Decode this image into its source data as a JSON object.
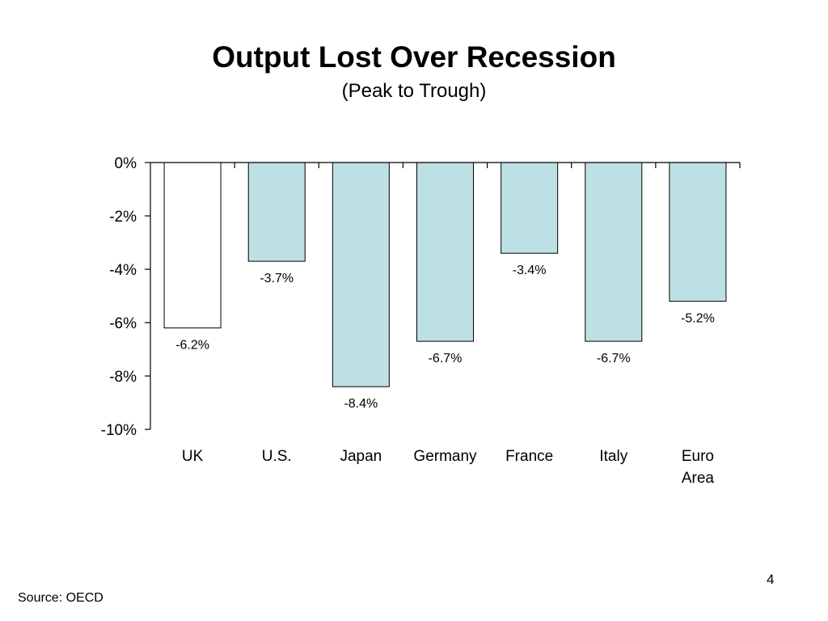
{
  "slide": {
    "title": "Output Lost Over Recession",
    "subtitle": "(Peak to Trough)",
    "source": "Source: OECD",
    "page_number": "4"
  },
  "chart_data": {
    "type": "bar",
    "categories": [
      [
        "UK"
      ],
      [
        "U.S."
      ],
      [
        "Japan"
      ],
      [
        "Germany"
      ],
      [
        "France"
      ],
      [
        "Italy"
      ],
      [
        "Euro",
        "Area"
      ]
    ],
    "values": [
      -6.2,
      -3.7,
      -8.4,
      -6.7,
      -3.4,
      -6.7,
      -5.2
    ],
    "data_labels": [
      "-6.2%",
      "-3.7%",
      "-8.4%",
      "-6.7%",
      "-3.4%",
      "-6.7%",
      "-5.2%"
    ],
    "ylim": [
      -10,
      0
    ],
    "yticks": [
      0,
      -2,
      -4,
      -6,
      -8,
      -10
    ],
    "ytick_labels": [
      "0%",
      "-2%",
      "-4%",
      "-6%",
      "-8%",
      "-10%"
    ],
    "bar_colors": [
      "#ffffff",
      "#bde0e4",
      "#bde0e4",
      "#bde0e4",
      "#bde0e4",
      "#bde0e4",
      "#bde0e4"
    ],
    "bar_stroke": "#000000",
    "grid": false,
    "legend": "none"
  }
}
